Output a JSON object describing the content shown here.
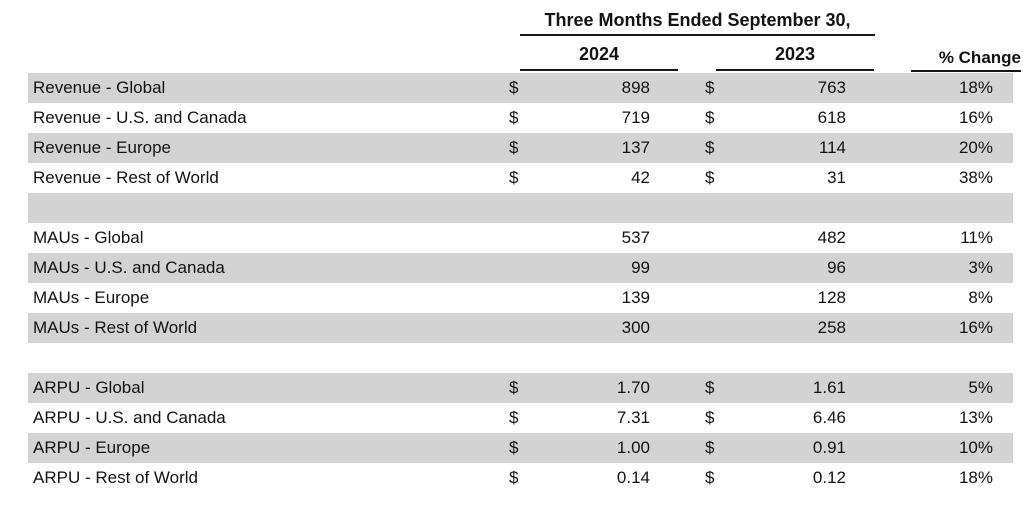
{
  "chart_data": {
    "type": "table",
    "title": "Three Months Ended September 30,",
    "header": {
      "period": "Three Months Ended September 30,",
      "col_2024": "2024",
      "col_2023": "2023",
      "col_change": "% Change"
    },
    "columns": [
      "",
      "2024",
      "2023",
      "% Change"
    ],
    "rows": [
      {
        "label": "Revenue - Global",
        "cur": "$",
        "y2024": "898",
        "y2023": "763",
        "change": "18%"
      },
      {
        "label": "Revenue - U.S. and Canada",
        "cur": "$",
        "y2024": "719",
        "y2023": "618",
        "change": "16%"
      },
      {
        "label": "Revenue - Europe",
        "cur": "$",
        "y2024": "137",
        "y2023": "114",
        "change": "20%"
      },
      {
        "label": "Revenue - Rest of World",
        "cur": "$",
        "y2024": "42",
        "y2023": "31",
        "change": "38%"
      },
      {
        "label": "",
        "cur": "",
        "y2024": "",
        "y2023": "",
        "change": ""
      },
      {
        "label": "MAUs - Global",
        "cur": "",
        "y2024": "537",
        "y2023": "482",
        "change": "11%"
      },
      {
        "label": "MAUs - U.S. and Canada",
        "cur": "",
        "y2024": "99",
        "y2023": "96",
        "change": "3%"
      },
      {
        "label": "MAUs - Europe",
        "cur": "",
        "y2024": "139",
        "y2023": "128",
        "change": "8%"
      },
      {
        "label": "MAUs - Rest of World",
        "cur": "",
        "y2024": "300",
        "y2023": "258",
        "change": "16%"
      },
      {
        "label": "",
        "cur": "",
        "y2024": "",
        "y2023": "",
        "change": ""
      },
      {
        "label": "ARPU - Global",
        "cur": "$",
        "y2024": "1.70",
        "y2023": "1.61",
        "change": "5%"
      },
      {
        "label": "ARPU - U.S. and Canada",
        "cur": "$",
        "y2024": "7.31",
        "y2023": "6.46",
        "change": "13%"
      },
      {
        "label": "ARPU - Europe",
        "cur": "$",
        "y2024": "1.00",
        "y2023": "0.91",
        "change": "10%"
      },
      {
        "label": "ARPU - Rest of World",
        "cur": "$",
        "y2024": "0.14",
        "y2023": "0.12",
        "change": "18%"
      }
    ],
    "colors": {
      "row_stripe": "#d3d3d3",
      "text": "#121212",
      "rule": "#161616",
      "background": "#ffffff"
    },
    "layout": {
      "grid": "off",
      "legend": "none",
      "stripe_pattern": "alternating rows, first row shaded"
    }
  }
}
